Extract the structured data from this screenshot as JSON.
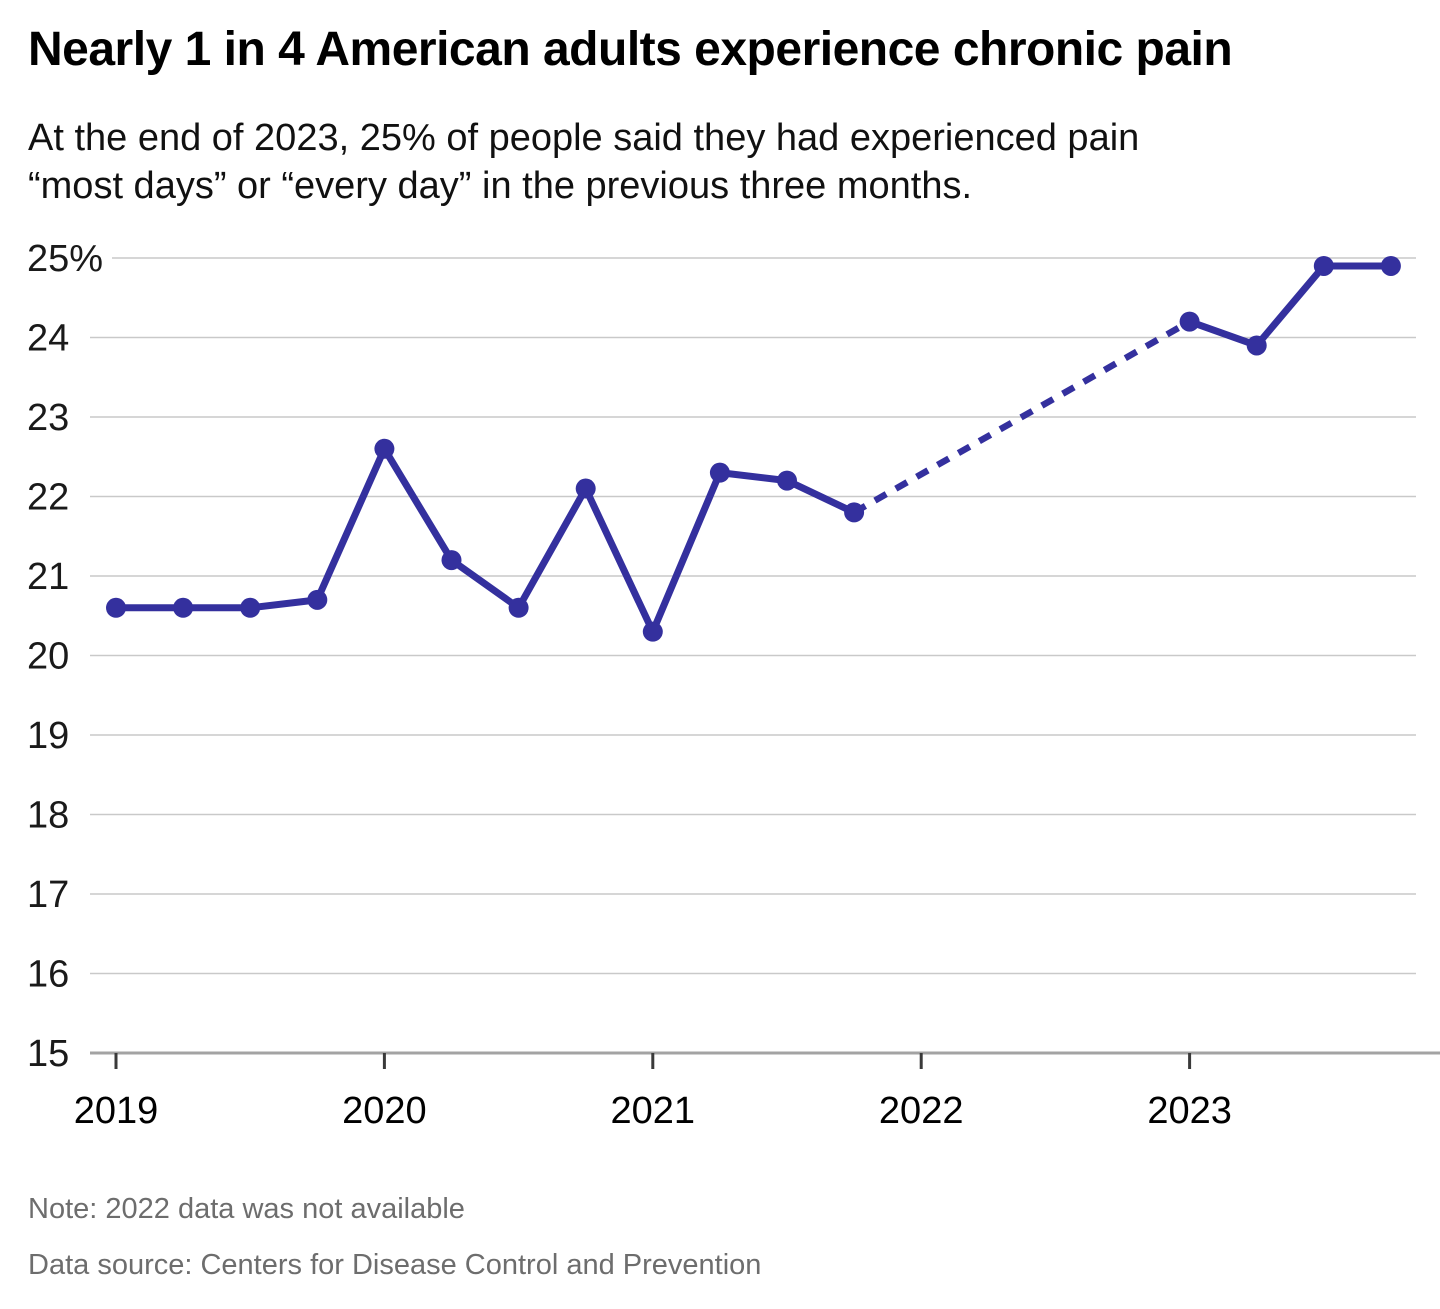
{
  "header": {
    "title": "Nearly 1 in 4 American adults experience chronic pain",
    "subtitle": "At the end of 2023, 25% of people said they had experienced pain “most days” or “every day” in the previous three months."
  },
  "footer": {
    "note": "Note: 2022 data was not available",
    "source": "Data source: Centers for Disease Control and Prevention"
  },
  "chart_data": {
    "type": "line",
    "title": "Nearly 1 in 4 American adults experience chronic pain",
    "subtitle": "At the end of 2023, 25% of people said they had experienced pain “most days” or “every day” in the previous three months.",
    "xlabel": "",
    "ylabel": "",
    "ylim": [
      15,
      25
    ],
    "xlim": [
      2019,
      2023.75
    ],
    "grid": "horizontal",
    "legend": "none",
    "missing_data_years": [
      2022
    ],
    "missing_data_style": "dashed connector",
    "line_color": "#34309e",
    "grid_color": "#c9c9c9",
    "axis_color": "#a3a3a3",
    "tick_color": "#3a3a3a",
    "y_ticks": [
      {
        "value": 25,
        "label": "25%"
      },
      {
        "value": 24,
        "label": "24"
      },
      {
        "value": 23,
        "label": "23"
      },
      {
        "value": 22,
        "label": "22"
      },
      {
        "value": 21,
        "label": "21"
      },
      {
        "value": 20,
        "label": "20"
      },
      {
        "value": 19,
        "label": "19"
      },
      {
        "value": 18,
        "label": "18"
      },
      {
        "value": 17,
        "label": "17"
      },
      {
        "value": 16,
        "label": "16"
      },
      {
        "value": 15,
        "label": "15"
      }
    ],
    "x_ticks": [
      {
        "value": 2019,
        "label": "2019"
      },
      {
        "value": 2020,
        "label": "2020"
      },
      {
        "value": 2021,
        "label": "2021"
      },
      {
        "value": 2022,
        "label": "2022"
      },
      {
        "value": 2023,
        "label": "2023"
      }
    ],
    "points": [
      {
        "x": 2019.0,
        "y": 20.6
      },
      {
        "x": 2019.25,
        "y": 20.6
      },
      {
        "x": 2019.5,
        "y": 20.6
      },
      {
        "x": 2019.75,
        "y": 20.7
      },
      {
        "x": 2020.0,
        "y": 22.6
      },
      {
        "x": 2020.25,
        "y": 21.2
      },
      {
        "x": 2020.5,
        "y": 20.6
      },
      {
        "x": 2020.75,
        "y": 22.1
      },
      {
        "x": 2021.0,
        "y": 20.3
      },
      {
        "x": 2021.25,
        "y": 22.3
      },
      {
        "x": 2021.5,
        "y": 22.2
      },
      {
        "x": 2021.75,
        "y": 21.8
      },
      {
        "x": 2023.0,
        "y": 24.2
      },
      {
        "x": 2023.25,
        "y": 23.9
      },
      {
        "x": 2023.5,
        "y": 24.9
      },
      {
        "x": 2023.75,
        "y": 24.9
      }
    ]
  }
}
